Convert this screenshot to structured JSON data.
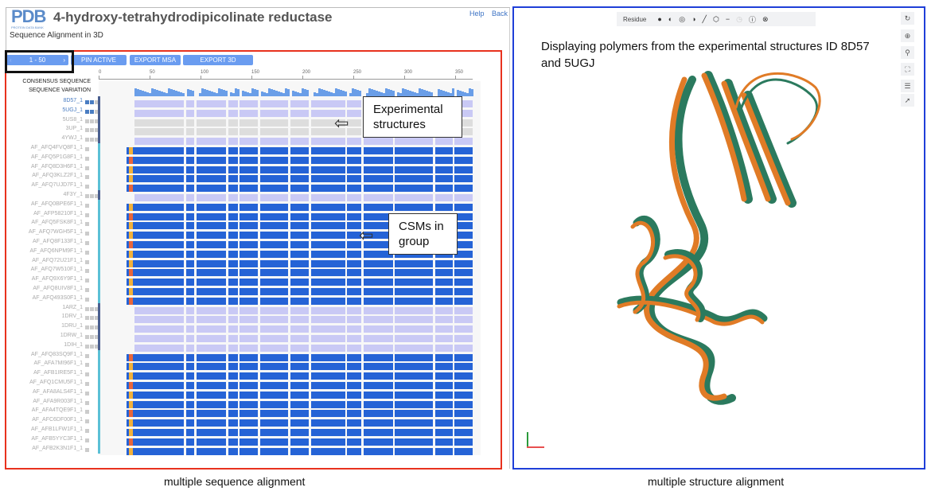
{
  "app": {
    "logo": "PDB",
    "logo_sub": "PROTEIN DATA BANK",
    "title": "4-hydroxy-tetrahydrodipicolinate reductase",
    "help": "Help",
    "back": "Back",
    "subtitle": "Sequence Alignment in 3D"
  },
  "toolbar": {
    "page_range": "1 - 50",
    "prev": "‹",
    "next": "›",
    "pin_active": "PIN ACTIVE",
    "export_msa": "EXPORT MSA",
    "export_3d": "EXPORT 3D"
  },
  "ruler": [
    "0",
    "50",
    "100",
    "150",
    "200",
    "250",
    "300",
    "350"
  ],
  "tracks": {
    "consensus": "CONSENSUS SEQUENCE",
    "variation": "SEQUENCE VARIATION"
  },
  "rows": [
    {
      "id": "8D57_1",
      "type": "exp",
      "active": true
    },
    {
      "id": "5UGJ_1",
      "type": "exp",
      "active": true
    },
    {
      "id": "5US8_1",
      "type": "exp0"
    },
    {
      "id": "3UP_1",
      "type": "exp0"
    },
    {
      "id": "4YWJ_1",
      "type": "exp"
    },
    {
      "id": "AF_AFQ4FVQ8F1_1",
      "type": "csm"
    },
    {
      "id": "AF_AFQ5P1G8F1_1",
      "type": "csm"
    },
    {
      "id": "AF_AFQ8D3H6F1_1",
      "type": "csm"
    },
    {
      "id": "AF_AFQ3KLZ2F1_1",
      "type": "csm"
    },
    {
      "id": "AF_AFQ7UJD7F1_1",
      "type": "csm"
    },
    {
      "id": "4F3Y_1",
      "type": "exp"
    },
    {
      "id": "AF_AFQ0BPE6F1_1",
      "type": "csm"
    },
    {
      "id": "AF_AFP58210F1_1",
      "type": "csm"
    },
    {
      "id": "AF_AFQ5FSK8F1_1",
      "type": "csm"
    },
    {
      "id": "AF_AFQ7WGH5F1_1",
      "type": "csm"
    },
    {
      "id": "AF_AFQ8F133F1_1",
      "type": "csm"
    },
    {
      "id": "AF_AFQ6NPM9F1_1",
      "type": "csm"
    },
    {
      "id": "AF_AFQ72U21F1_1",
      "type": "csm"
    },
    {
      "id": "AF_AFQ7W510F1_1",
      "type": "csm"
    },
    {
      "id": "AF_AFQ9X6Y9F1_1",
      "type": "csm"
    },
    {
      "id": "AF_AFQ8UIV8F1_1",
      "type": "csm"
    },
    {
      "id": "AF_AFQ493S0F1_1",
      "type": "csm"
    },
    {
      "id": "1ARZ_1",
      "type": "exp"
    },
    {
      "id": "1DRV_1",
      "type": "exp"
    },
    {
      "id": "1DRU_1",
      "type": "exp"
    },
    {
      "id": "1DRW_1",
      "type": "exp"
    },
    {
      "id": "1DIH_1",
      "type": "exp"
    },
    {
      "id": "AF_AFQ83SQ9F1_1",
      "type": "csm"
    },
    {
      "id": "AF_AFA7MI96F1_1",
      "type": "csm"
    },
    {
      "id": "AF_AFB1IRE5F1_1",
      "type": "csm"
    },
    {
      "id": "AF_AFQ1CMU5F1_1",
      "type": "csm"
    },
    {
      "id": "AF_AFA8ALS4F1_1",
      "type": "csm"
    },
    {
      "id": "AF_AFA9R003F1_1",
      "type": "csm"
    },
    {
      "id": "AF_AFA4TQE9F1_1",
      "type": "csm"
    },
    {
      "id": "AF_AFC6DF00F1_1",
      "type": "csm"
    },
    {
      "id": "AF_AFB1LFW1F1_1",
      "type": "csm"
    },
    {
      "id": "AF_AFB5YYC3F1_1",
      "type": "csm"
    },
    {
      "id": "AF_AFB2K3N1F1_1",
      "type": "csm"
    }
  ],
  "callouts": {
    "experimental": "Experimental structures",
    "csms": "CSMs in group"
  },
  "viewer": {
    "mode": "Residue",
    "description": "Displaying polymers from the experimental structures ID 8D57 and 5UGJ"
  },
  "captions": {
    "left": "multiple sequence alignment",
    "right": "multiple structure alignment"
  },
  "colors": {
    "exp": "#c9c9f5",
    "csm": "#2563d6",
    "red": "#e8321e",
    "blue": "#1f3fd8",
    "orange": "#e07b26",
    "green": "#2b7a5e"
  }
}
